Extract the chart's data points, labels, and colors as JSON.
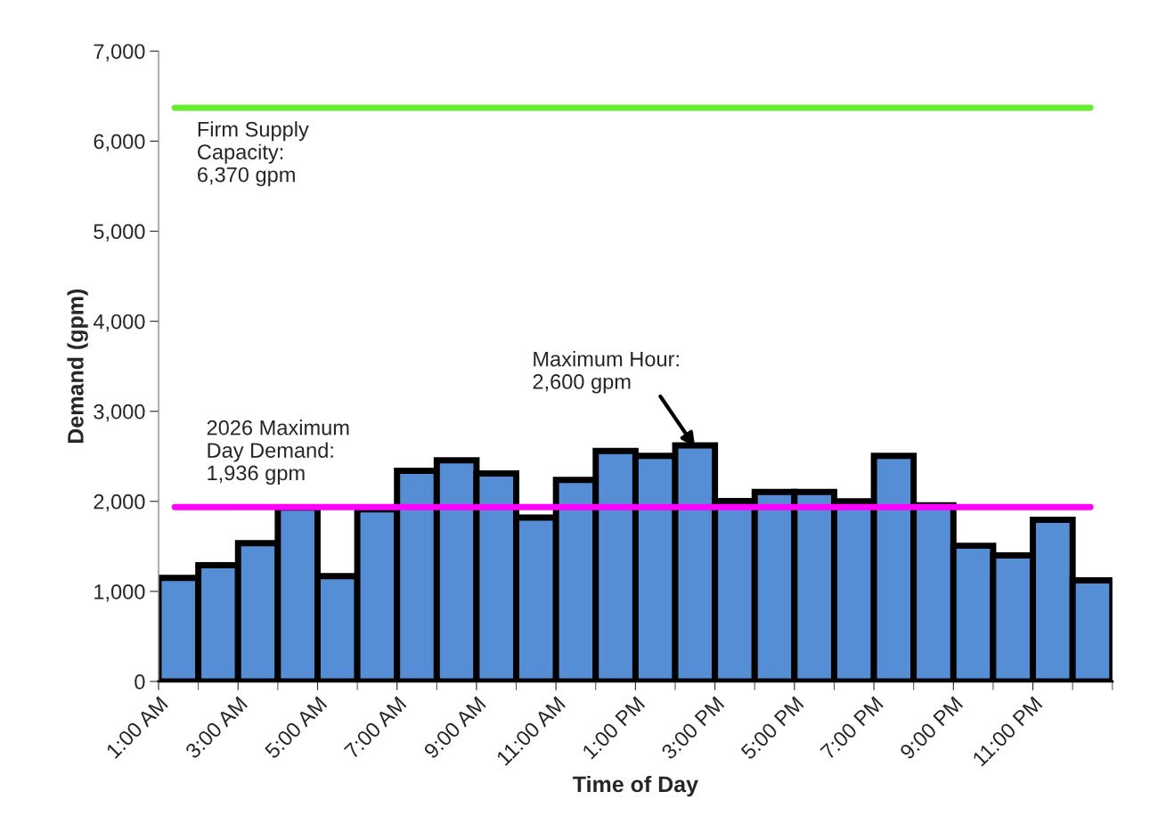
{
  "chart_data": {
    "type": "histogram",
    "xlabel": "Time of Day",
    "ylabel": "Demand (gpm)",
    "bins": [
      1,
      2,
      3,
      4,
      5,
      6,
      7,
      8,
      9,
      10,
      11,
      12,
      13,
      14,
      15,
      16,
      17,
      18,
      19,
      20,
      21,
      22,
      23,
      24,
      25
    ],
    "values": [
      1150,
      1290,
      1535,
      1930,
      1170,
      1910,
      2340,
      2455,
      2310,
      1820,
      2237,
      2560,
      2505,
      2621,
      2002,
      2105,
      2105,
      2000,
      2505,
      1957,
      1507,
      1400,
      1796,
      1123
    ],
    "color": "#558ed5",
    "xlim": [
      1,
      25
    ],
    "xticks": [
      {
        "value": 1,
        "label": "1:00 AM"
      },
      {
        "value": 2,
        "label": null
      },
      {
        "value": 3,
        "label": "3:00 AM"
      },
      {
        "value": 4,
        "label": null
      },
      {
        "value": 5,
        "label": "5:00 AM"
      },
      {
        "value": 6,
        "label": null
      },
      {
        "value": 7,
        "label": "7:00 AM"
      },
      {
        "value": 8,
        "label": null
      },
      {
        "value": 9,
        "label": "9:00 AM"
      },
      {
        "value": 10,
        "label": null
      },
      {
        "value": 11,
        "label": "11:00 AM"
      },
      {
        "value": 12,
        "label": null
      },
      {
        "value": 13,
        "label": "1:00 PM"
      },
      {
        "value": 14,
        "label": null
      },
      {
        "value": 15,
        "label": "3:00 PM"
      },
      {
        "value": 16,
        "label": null
      },
      {
        "value": 17,
        "label": "5:00 PM"
      },
      {
        "value": 18,
        "label": null
      },
      {
        "value": 19,
        "label": "7:00 PM"
      },
      {
        "value": 20,
        "label": null
      },
      {
        "value": 21,
        "label": "9:00 PM"
      },
      {
        "value": 22,
        "label": null
      },
      {
        "value": 23,
        "label": "11:00 PM"
      },
      {
        "value": 24,
        "label": null
      },
      {
        "value": 25,
        "label": null
      }
    ],
    "ylim": [
      0,
      7000
    ],
    "yticks": [
      {
        "value": 0,
        "label": "0"
      },
      {
        "value": 1000,
        "label": "1,000"
      },
      {
        "value": 2000,
        "label": "2,000"
      },
      {
        "value": 3000,
        "label": "3,000"
      },
      {
        "value": 4000,
        "label": "4,000"
      },
      {
        "value": 5000,
        "label": "5,000"
      },
      {
        "value": 6000,
        "label": "6,000"
      },
      {
        "value": 7000,
        "label": "7,000"
      }
    ],
    "ref_lines": [
      {
        "axis": "y",
        "value": 6370,
        "label": "Firm Supply\nCapacity:\n6,370 gpm",
        "color": "#66ee33"
      },
      {
        "axis": "y",
        "value": 1936,
        "label": "2026 Maximum\nDay Demand:\n1,936 gpm",
        "color": "#ff00ff"
      }
    ],
    "annotations": [
      {
        "text": "Maximum Hour:\n2,600 gpm",
        "x": 14.5,
        "y": 2600
      }
    ],
    "grid": false,
    "legend": false
  }
}
